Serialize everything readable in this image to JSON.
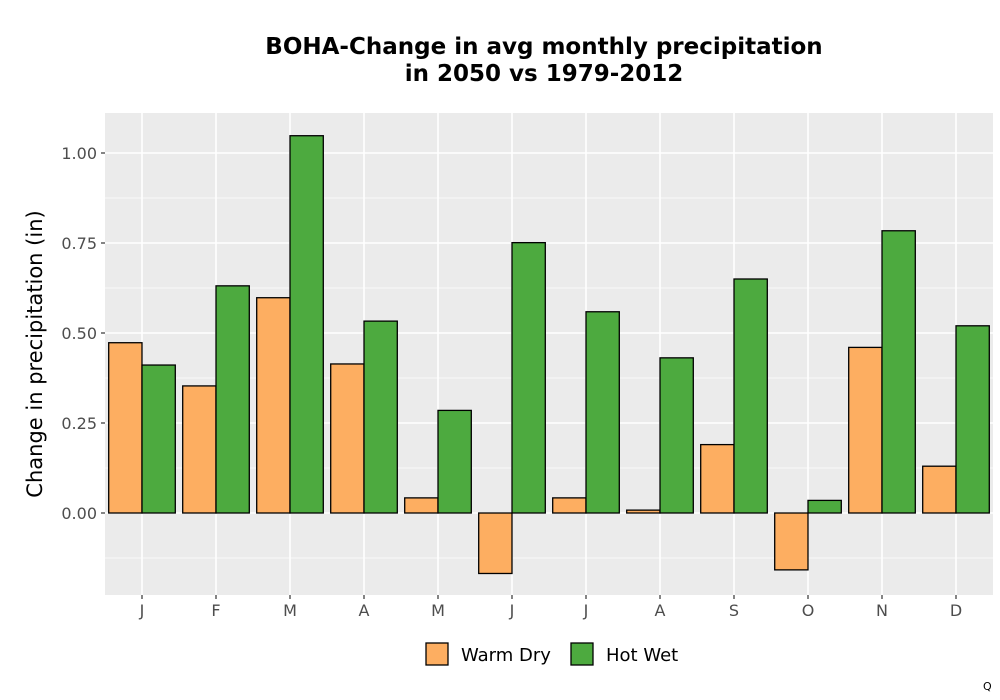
{
  "chart_data": {
    "type": "bar",
    "title_line1": "BOHA-Change in avg monthly precipitation",
    "title_line2": "in 2050 vs 1979-2012",
    "xlabel": "",
    "ylabel": "Change in precipitation (in)",
    "categories": [
      "J",
      "F",
      "M",
      "A",
      "M",
      "J",
      "J",
      "A",
      "S",
      "O",
      "N",
      "D"
    ],
    "series": [
      {
        "name": "Warm Dry",
        "color": "#FDAE61",
        "values": [
          0.473,
          0.353,
          0.598,
          0.414,
          0.042,
          -0.168,
          0.042,
          0.008,
          0.19,
          -0.158,
          0.46,
          0.13
        ]
      },
      {
        "name": "Hot Wet",
        "color": "#4DAA3F",
        "values": [
          0.411,
          0.631,
          1.048,
          0.533,
          0.285,
          0.751,
          0.559,
          0.431,
          0.65,
          0.035,
          0.784,
          0.52
        ]
      }
    ],
    "ylim": [
      -0.225,
      1.1
    ],
    "yticks": [
      0.0,
      0.25,
      0.5,
      0.75,
      1.0
    ],
    "ytick_labels": [
      "0.00",
      "0.25",
      "0.50",
      "0.75",
      "1.00"
    ],
    "grid": true,
    "panel_color": "#EBEBEB",
    "legend_position": "bottom",
    "corner_mark": "Q"
  }
}
